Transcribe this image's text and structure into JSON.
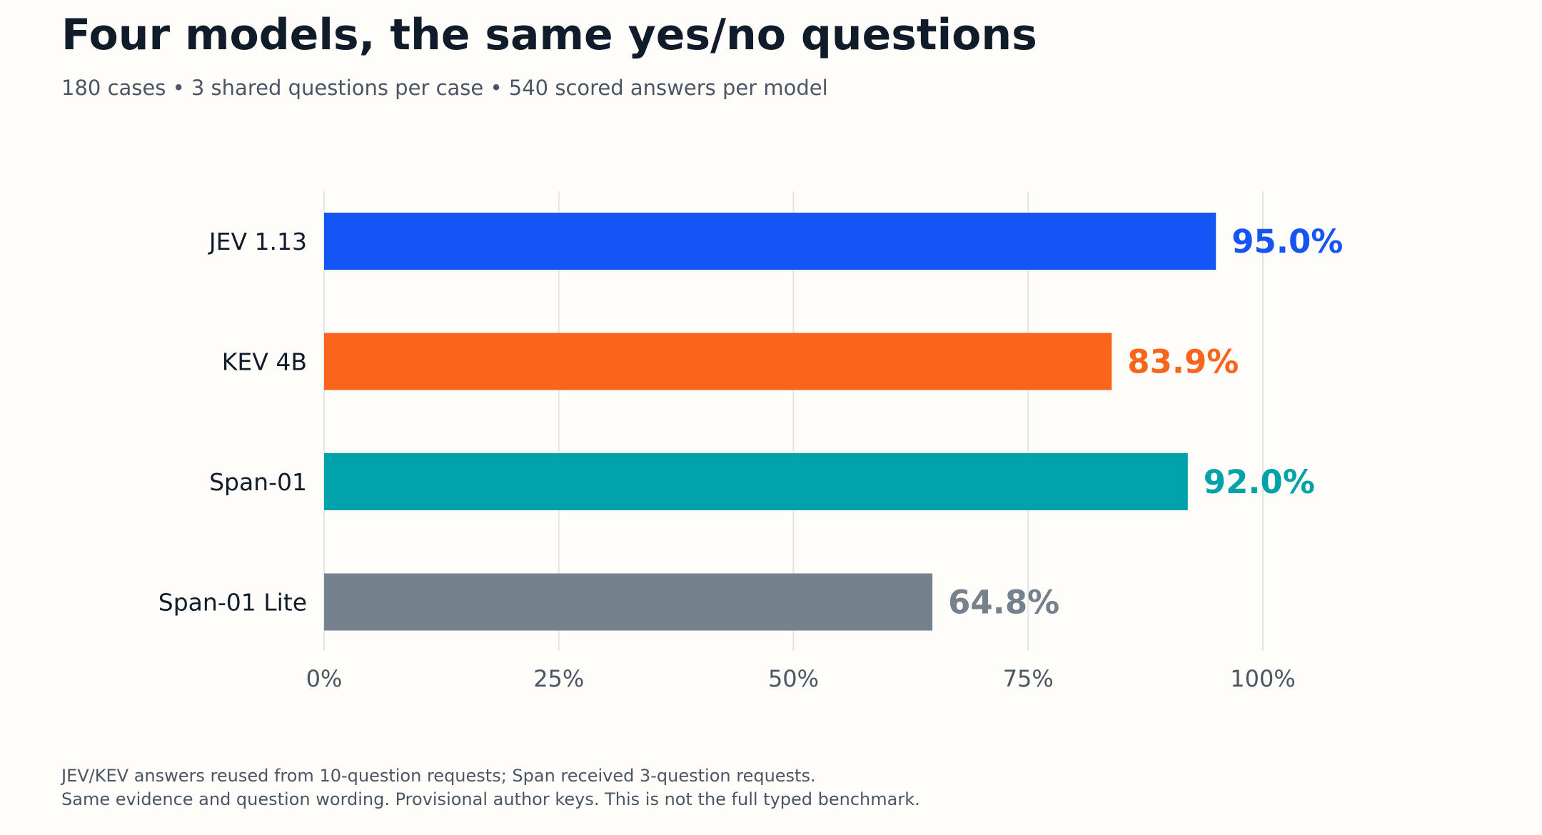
{
  "header": {
    "title": "Four models, the same yes/no questions",
    "subtitle": "180 cases  •  3 shared questions per case  •  540 scored answers per model"
  },
  "footnote": {
    "line1": "JEV/KEV answers reused from 10-question requests; Span received 3-question requests.",
    "line2": "Same evidence and question wording. Provisional author keys. This is not the full typed benchmark."
  },
  "chart_data": {
    "type": "bar",
    "orientation": "horizontal",
    "title": "Four models, the same yes/no questions",
    "subtitle": "180 cases • 3 shared questions per case • 540 scored answers per model",
    "xlabel": "",
    "ylabel": "",
    "xlim": [
      0,
      100
    ],
    "grid": true,
    "legend": "none",
    "categories": [
      "JEV 1.13",
      "KEV 4B",
      "Span-01",
      "Span-01 Lite"
    ],
    "values": [
      95.0,
      83.9,
      92.0,
      64.8
    ],
    "value_labels": [
      "95.0%",
      "83.9%",
      "92.0%",
      "64.8%"
    ],
    "colors": [
      "#1655f5",
      "#fb641b",
      "#00a2aa",
      "#76818e"
    ],
    "ticks": [
      0,
      25,
      50,
      75,
      100
    ],
    "tick_labels": [
      "0%",
      "25%",
      "50%",
      "75%",
      "100%"
    ]
  }
}
